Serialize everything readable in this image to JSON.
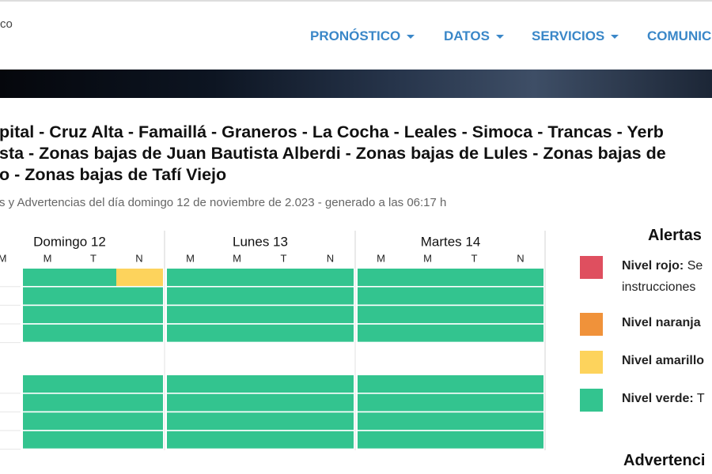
{
  "header": {
    "logo_text": "co",
    "nav": [
      "PRONÓSTICO",
      "DATOS",
      "SERVICIOS",
      "COMUNIC"
    ]
  },
  "heading": {
    "lines": [
      "pital - Cruz Alta - Famaillá - Graneros - La Cocha - Leales - Simoca - Trancas - Yerb",
      "sta - Zonas bajas de Juan Bautista Alberdi - Zonas bajas de Lules - Zonas bajas de",
      "o - Zonas bajas de Tafí Viejo"
    ],
    "subtitle": "s y Advertencias del día domingo 12 de noviembre de 2.023 - generado a las 06:17 h"
  },
  "grid": {
    "partial_period": "M",
    "days": [
      {
        "label": "Domingo 12",
        "periods": [
          "M",
          "M",
          "T",
          "N"
        ]
      },
      {
        "label": "Lunes 13",
        "periods": [
          "M",
          "M",
          "T",
          "N"
        ]
      },
      {
        "label": "Martes 14",
        "periods": [
          "M",
          "M",
          "T",
          "N"
        ]
      }
    ],
    "row_groups": [
      [
        [
          null,
          "#33c48f",
          "#33c48f",
          "#fdd35c",
          "#33c48f",
          "#33c48f",
          "#33c48f",
          "#33c48f",
          "#33c48f",
          "#33c48f",
          "#33c48f",
          "#33c48f"
        ],
        [
          null,
          "#33c48f",
          "#33c48f",
          "#33c48f",
          "#33c48f",
          "#33c48f",
          "#33c48f",
          "#33c48f",
          "#33c48f",
          "#33c48f",
          "#33c48f",
          "#33c48f"
        ],
        [
          null,
          "#33c48f",
          "#33c48f",
          "#33c48f",
          "#33c48f",
          "#33c48f",
          "#33c48f",
          "#33c48f",
          "#33c48f",
          "#33c48f",
          "#33c48f",
          "#33c48f"
        ],
        [
          null,
          "#33c48f",
          "#33c48f",
          "#33c48f",
          "#33c48f",
          "#33c48f",
          "#33c48f",
          "#33c48f",
          "#33c48f",
          "#33c48f",
          "#33c48f",
          "#33c48f"
        ]
      ],
      [
        [
          null,
          "#33c48f",
          "#33c48f",
          "#33c48f",
          "#33c48f",
          "#33c48f",
          "#33c48f",
          "#33c48f",
          "#33c48f",
          "#33c48f",
          "#33c48f",
          "#33c48f"
        ],
        [
          null,
          "#33c48f",
          "#33c48f",
          "#33c48f",
          "#33c48f",
          "#33c48f",
          "#33c48f",
          "#33c48f",
          "#33c48f",
          "#33c48f",
          "#33c48f",
          "#33c48f"
        ],
        [
          null,
          "#33c48f",
          "#33c48f",
          "#33c48f",
          "#33c48f",
          "#33c48f",
          "#33c48f",
          "#33c48f",
          "#33c48f",
          "#33c48f",
          "#33c48f",
          "#33c48f"
        ],
        [
          null,
          "#33c48f",
          "#33c48f",
          "#33c48f",
          "#33c48f",
          "#33c48f",
          "#33c48f",
          "#33c48f",
          "#33c48f",
          "#33c48f",
          "#33c48f",
          "#33c48f"
        ]
      ]
    ]
  },
  "legend": {
    "title": "Alertas",
    "items": [
      {
        "color": "#df4f5f",
        "label": "Nivel rojo:",
        "text": "Se",
        "continuation": "instrucciones"
      },
      {
        "color": "#f0923a",
        "label": "Nivel naranja"
      },
      {
        "color": "#fdd35c",
        "label": "Nivel amarillo"
      },
      {
        "color": "#33c48f",
        "label": "Nivel verde:",
        "text": "T"
      }
    ],
    "next_title": "Advertenci"
  }
}
